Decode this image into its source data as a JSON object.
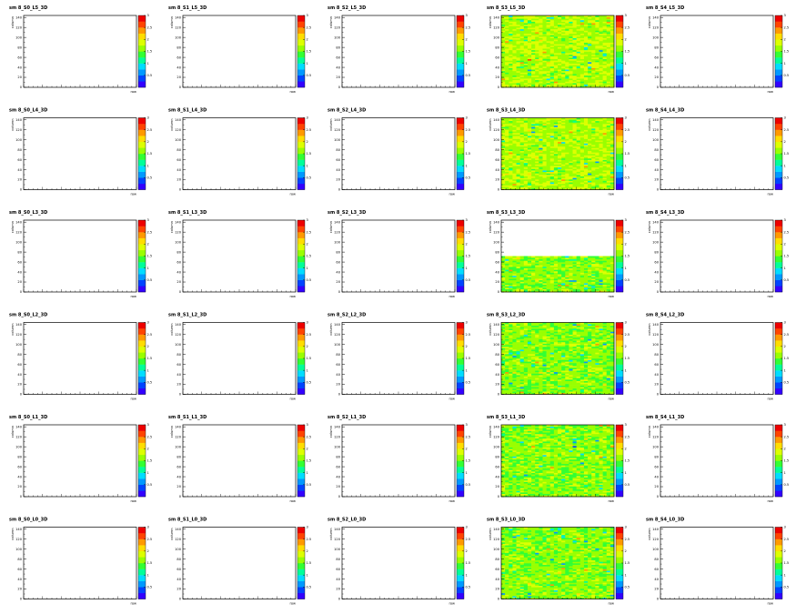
{
  "chart_data": {
    "type": "heatmap",
    "grid": {
      "rows": 6,
      "cols": 5
    },
    "ylabel": "column",
    "xlabel": "row",
    "y_ticks": [
      "0",
      "20",
      "40",
      "60",
      "80",
      "100",
      "120",
      "140"
    ],
    "ylim": [
      0,
      144
    ],
    "x_minor_ticks": 24,
    "color_scale": {
      "min": 0,
      "max": 3,
      "tick_labels": [
        "0.5",
        "1",
        "1.5",
        "2",
        "2.5",
        "3"
      ],
      "colors": [
        "#3300ff",
        "#0044ff",
        "#0099ff",
        "#00ddff",
        "#00ff99",
        "#33ff33",
        "#99ff00",
        "#ddff00",
        "#ffdd00",
        "#ff9900",
        "#ff4400",
        "#ee0000"
      ]
    },
    "panels": [
      {
        "title": "sm 8_S0_L5_3D",
        "filled": false
      },
      {
        "title": "sm 8_S1_L5_3D",
        "filled": false
      },
      {
        "title": "sm 8_S2_L5_3D",
        "filled": false
      },
      {
        "title": "sm 8_S3_L5_3D",
        "filled": true,
        "fill_top_frac": 1.0,
        "level": 1.7
      },
      {
        "title": "sm 8_S4_L5_3D",
        "filled": false
      },
      {
        "title": "sm 8_S0_L4_3D",
        "filled": false
      },
      {
        "title": "sm 8_S1_L4_3D",
        "filled": false
      },
      {
        "title": "sm 8_S2_L4_3D",
        "filled": false
      },
      {
        "title": "sm 8_S3_L4_3D",
        "filled": true,
        "fill_top_frac": 1.0,
        "level": 1.7
      },
      {
        "title": "sm 8_S4_L4_3D",
        "filled": false
      },
      {
        "title": "sm 8_S0_L3_3D",
        "filled": false
      },
      {
        "title": "sm 8_S1_L3_3D",
        "filled": false
      },
      {
        "title": "sm 8_S2_L3_3D",
        "filled": false
      },
      {
        "title": "sm 8_S3_L3_3D",
        "filled": true,
        "fill_top_frac": 0.5,
        "level": 1.6
      },
      {
        "title": "sm 8_S4_L3_3D",
        "filled": false
      },
      {
        "title": "sm 8_S0_L2_3D",
        "filled": false
      },
      {
        "title": "sm 8_S1_L2_3D",
        "filled": false
      },
      {
        "title": "sm 8_S2_L2_3D",
        "filled": false
      },
      {
        "title": "sm 8_S3_L2_3D",
        "filled": true,
        "fill_top_frac": 1.0,
        "level": 1.6
      },
      {
        "title": "sm 8_S4_L2_3D",
        "filled": false
      },
      {
        "title": "sm 8_S0_L1_3D",
        "filled": false
      },
      {
        "title": "sm 8_S1_L1_3D",
        "filled": false
      },
      {
        "title": "sm 8_S2_L1_3D",
        "filled": false
      },
      {
        "title": "sm 8_S3_L1_3D",
        "filled": true,
        "fill_top_frac": 1.0,
        "level": 1.6
      },
      {
        "title": "sm 8_S4_L1_3D",
        "filled": false
      },
      {
        "title": "sm 8_S0_L0_3D",
        "filled": false
      },
      {
        "title": "sm 8_S1_L0_3D",
        "filled": false
      },
      {
        "title": "sm 8_S2_L0_3D",
        "filled": false
      },
      {
        "title": "sm 8_S3_L0_3D",
        "filled": true,
        "fill_top_frac": 1.0,
        "level": 1.6
      },
      {
        "title": "sm 8_S4_L0_3D",
        "filled": false
      }
    ]
  }
}
